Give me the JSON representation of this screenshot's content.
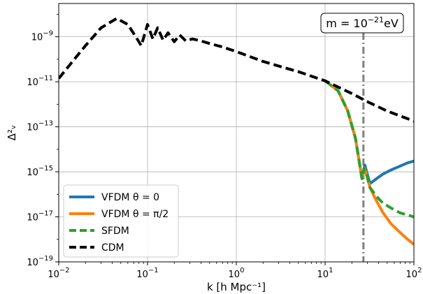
{
  "chart_data": {
    "type": "line",
    "title": "",
    "xlabel": "k  [h Mpc⁻¹]",
    "ylabel": "Δ²ᵥ",
    "xscale": "log",
    "yscale": "log",
    "xlim": [
      0.01,
      100
    ],
    "ylim": [
      1e-19,
      3e-08
    ],
    "grid": true,
    "legend_position": "bottom-left",
    "x_ticks": [
      {
        "base": "10",
        "exp": "−2",
        "value": 0.01
      },
      {
        "base": "10",
        "exp": "−1",
        "value": 0.1
      },
      {
        "base": "10",
        "exp": "0",
        "value": 1
      },
      {
        "base": "10",
        "exp": "1",
        "value": 10
      },
      {
        "base": "10",
        "exp": "2",
        "value": 100
      }
    ],
    "y_ticks": [
      {
        "base": "10",
        "exp": "−9",
        "value": 1e-09
      },
      {
        "base": "10",
        "exp": "−11",
        "value": 1e-11
      },
      {
        "base": "10",
        "exp": "−13",
        "value": 1e-13
      },
      {
        "base": "10",
        "exp": "−15",
        "value": 1e-15
      },
      {
        "base": "10",
        "exp": "−17",
        "value": 1e-17
      },
      {
        "base": "10",
        "exp": "−19",
        "value": 1e-19
      }
    ],
    "annotation": {
      "text_main": "m = 10",
      "text_exp": "−21",
      "text_unit": "eV",
      "vline_x": 27
    },
    "series": [
      {
        "name": "VFDM θ = 0",
        "color": "#1f77b4",
        "style": "solid",
        "width": 4,
        "x": [
          10,
          14,
          18,
          22,
          26,
          28,
          32,
          38,
          45,
          55,
          70,
          85,
          100
        ],
        "y": [
          1.1e-11,
          4e-12,
          5e-13,
          3e-14,
          5e-16,
          2e-15,
          3e-16,
          5e-16,
          8e-16,
          1.2e-15,
          1.8e-15,
          2.5e-15,
          3e-15
        ]
      },
      {
        "name": "VFDM θ = π/2",
        "color": "#ff7f0e",
        "style": "solid",
        "width": 4,
        "x": [
          10,
          14,
          18,
          22,
          26,
          28,
          32,
          38,
          45,
          55,
          70,
          85,
          100
        ],
        "y": [
          1.1e-11,
          4e-12,
          5e-13,
          3e-14,
          5e-16,
          1.5e-15,
          2e-16,
          5e-17,
          1.5e-17,
          5e-18,
          2e-18,
          1e-18,
          6e-19
        ]
      },
      {
        "name": "SFDM",
        "color": "#2ca02c",
        "style": "dashed",
        "width": 4,
        "x": [
          10,
          14,
          18,
          22,
          26,
          28,
          32,
          38,
          45,
          55,
          70,
          85,
          100
        ],
        "y": [
          1.1e-11,
          4e-12,
          5e-13,
          3e-14,
          5e-16,
          1.5e-15,
          2e-16,
          8e-17,
          4e-17,
          2.5e-17,
          1.5e-17,
          1.2e-17,
          1e-17
        ]
      },
      {
        "name": "CDM",
        "color": "#000000",
        "style": "dashed",
        "width": 4,
        "x": [
          0.01,
          0.015,
          0.02,
          0.03,
          0.045,
          0.06,
          0.075,
          0.085,
          0.1,
          0.115,
          0.13,
          0.15,
          0.17,
          0.2,
          0.23,
          0.27,
          0.32,
          0.4,
          0.5,
          0.7,
          1,
          2,
          3,
          5,
          10,
          20,
          30,
          50,
          100
        ],
        "y": [
          1.4e-11,
          1e-10,
          4e-10,
          2.5e-09,
          6.5e-09,
          3.5e-09,
          9e-10,
          4e-10,
          3.5e-09,
          8e-10,
          2.5e-09,
          7e-10,
          1.5e-09,
          6e-10,
          1.2e-09,
          6.5e-10,
          8e-10,
          6.5e-10,
          5e-10,
          3.5e-10,
          2.2e-10,
          8e-11,
          5e-11,
          2.8e-11,
          1.1e-11,
          3e-12,
          1.3e-12,
          5e-13,
          1.8e-13
        ]
      }
    ]
  }
}
